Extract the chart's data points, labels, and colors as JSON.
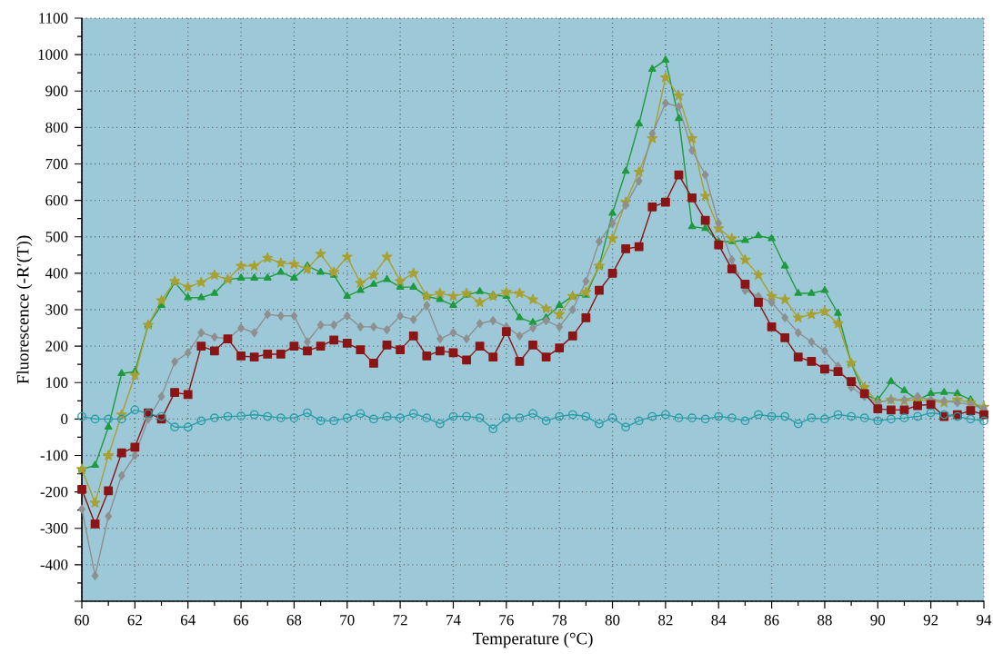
{
  "chart_data": {
    "type": "line",
    "xlabel": "Temperature (°C)",
    "ylabel": "Fluorescence (-R′(T))",
    "x": [
      60,
      60.5,
      61,
      61.5,
      62,
      62.5,
      63,
      63.5,
      64,
      64.5,
      65,
      65.5,
      66,
      66.5,
      67,
      67.5,
      68,
      68.5,
      69,
      69.5,
      70,
      70.5,
      71,
      71.5,
      72,
      72.5,
      73,
      73.5,
      74,
      74.5,
      75,
      75.5,
      76,
      76.5,
      77,
      77.5,
      78,
      78.5,
      79,
      79.5,
      80,
      80.5,
      81,
      81.5,
      82,
      82.5,
      83,
      83.5,
      84,
      84.5,
      85,
      85.5,
      86,
      86.5,
      87,
      87.5,
      88,
      88.5,
      89,
      89.5,
      90,
      90.5,
      91,
      91.5,
      92,
      92.5,
      93,
      93.5,
      94
    ],
    "series": [
      {
        "color": "#1e9b3c",
        "marker": "triangle",
        "values": [
          -138,
          -127,
          -22,
          125,
          130,
          258,
          312,
          375,
          333,
          333,
          345,
          383,
          387,
          387,
          387,
          403,
          387,
          420,
          403,
          395,
          337,
          353,
          370,
          383,
          362,
          362,
          337,
          328,
          312,
          340,
          350,
          340,
          337,
          278,
          265,
          278,
          312,
          337,
          340,
          420,
          565,
          680,
          810,
          960,
          985,
          825,
          528,
          523,
          487,
          487,
          490,
          503,
          495,
          420,
          345,
          345,
          353,
          290,
          153,
          67,
          53,
          103,
          78,
          53,
          70,
          73,
          70,
          53,
          20
        ]
      },
      {
        "color": "#a8a030",
        "marker": "star",
        "values": [
          -138,
          -230,
          -100,
          12,
          120,
          258,
          325,
          378,
          362,
          375,
          395,
          383,
          420,
          420,
          442,
          428,
          425,
          412,
          453,
          403,
          445,
          373,
          395,
          445,
          378,
          400,
          337,
          345,
          337,
          345,
          320,
          337,
          348,
          345,
          328,
          303,
          287,
          337,
          348,
          420,
          495,
          595,
          678,
          770,
          937,
          887,
          770,
          612,
          523,
          495,
          437,
          395,
          337,
          328,
          278,
          287,
          295,
          262,
          153,
          87,
          45,
          53,
          50,
          53,
          50,
          45,
          53,
          45,
          33
        ]
      },
      {
        "color": "#8f8f8f",
        "marker": "diamond",
        "values": [
          -247,
          -430,
          -267,
          -155,
          -100,
          0,
          62,
          157,
          182,
          237,
          225,
          220,
          250,
          237,
          287,
          283,
          283,
          212,
          258,
          258,
          283,
          253,
          253,
          245,
          283,
          273,
          312,
          220,
          237,
          220,
          262,
          270,
          253,
          228,
          250,
          270,
          253,
          300,
          378,
          487,
          537,
          587,
          653,
          783,
          867,
          857,
          737,
          670,
          537,
          437,
          353,
          337,
          320,
          278,
          237,
          212,
          187,
          145,
          87,
          62,
          45,
          53,
          53,
          62,
          53,
          50,
          45,
          40,
          28
        ]
      },
      {
        "color": "#8b1414",
        "marker": "square",
        "values": [
          -193,
          -288,
          -197,
          -93,
          -77,
          17,
          0,
          73,
          67,
          200,
          187,
          220,
          173,
          170,
          178,
          178,
          200,
          187,
          200,
          217,
          208,
          190,
          153,
          203,
          190,
          228,
          173,
          187,
          182,
          162,
          200,
          170,
          240,
          158,
          203,
          170,
          195,
          228,
          278,
          353,
          400,
          467,
          473,
          582,
          595,
          670,
          607,
          545,
          478,
          412,
          370,
          320,
          253,
          223,
          170,
          158,
          137,
          130,
          103,
          70,
          28,
          25,
          25,
          37,
          40,
          7,
          12,
          23,
          12
        ]
      },
      {
        "color": "#2a9ea6",
        "marker": "circle",
        "values": [
          7,
          0,
          0,
          0,
          25,
          15,
          7,
          -22,
          -22,
          -5,
          3,
          7,
          8,
          12,
          7,
          3,
          3,
          17,
          -5,
          -5,
          3,
          15,
          0,
          7,
          3,
          15,
          3,
          -13,
          7,
          7,
          3,
          -27,
          3,
          3,
          15,
          -5,
          7,
          12,
          7,
          -13,
          3,
          -22,
          -5,
          7,
          12,
          3,
          3,
          0,
          7,
          3,
          -5,
          12,
          7,
          7,
          -13,
          3,
          0,
          12,
          7,
          3,
          -5,
          0,
          3,
          7,
          17,
          12,
          7,
          0,
          -5
        ]
      }
    ],
    "xlim": [
      60,
      94
    ],
    "xticks": [
      60,
      62,
      64,
      66,
      68,
      70,
      72,
      74,
      76,
      78,
      80,
      82,
      84,
      86,
      88,
      90,
      92,
      94
    ],
    "ylim": [
      -500,
      1100
    ],
    "yticks": [
      {
        "value": -500,
        "label": null
      },
      -400,
      -300,
      -200,
      -100,
      0,
      100,
      200,
      300,
      400,
      500,
      600,
      700,
      800,
      900,
      1000,
      1100
    ],
    "grid": true,
    "line_style": "solid"
  }
}
